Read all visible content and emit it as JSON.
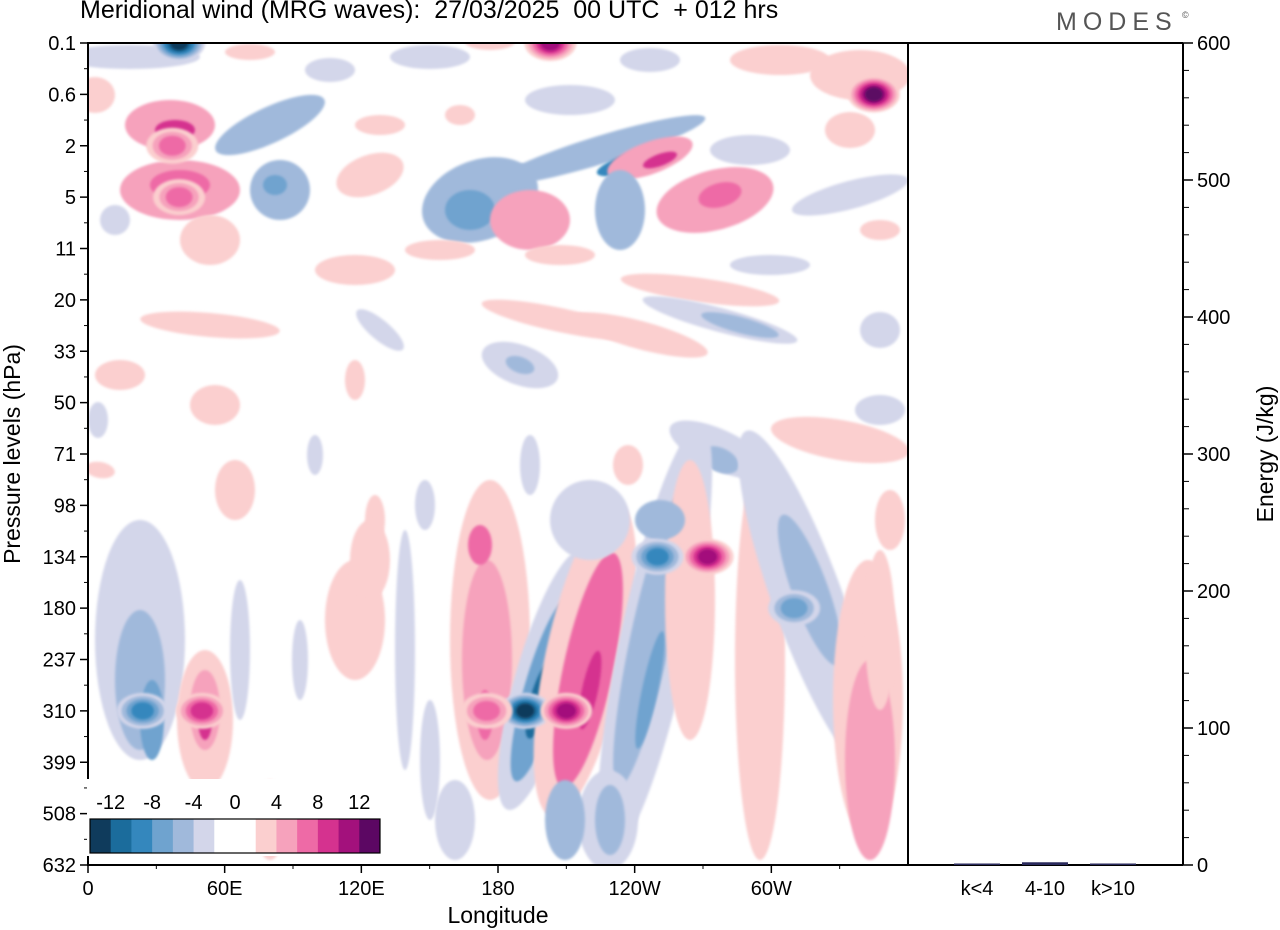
{
  "title": "Meridional wind (MRG waves):  27/03/2025  00 UTC  + 012 hrs",
  "logo": "MODES",
  "logo_mark": "©",
  "chart_data": [
    {
      "type": "heatmap",
      "title": "Meridional wind (MRG waves):  27/03/2025  00 UTC  + 012 hrs",
      "xlabel": "Longitude",
      "ylabel": "Pressure levels (hPa)",
      "x_ticks": [
        "0",
        "60E",
        "120E",
        "180",
        "120W",
        "60W"
      ],
      "x_tick_degrees": [
        0,
        60,
        120,
        180,
        240,
        300
      ],
      "xlim": [
        0,
        360
      ],
      "y_ticks": [
        "0.1",
        "0.6",
        "2",
        "5",
        "11",
        "20",
        "33",
        "50",
        "71",
        "98",
        "134",
        "180",
        "237",
        "310",
        "399",
        "508",
        "632"
      ],
      "colorbar": {
        "labels": [
          "-12",
          "-8",
          "-4",
          "0",
          "4",
          "8",
          "12"
        ],
        "colors": [
          "#0f3b5c",
          "#1b6c9c",
          "#3487bd",
          "#6fa3cf",
          "#a0b9db",
          "#d3d6ea",
          "#ffffff",
          "#ffffff",
          "#fbcfcf",
          "#f6a2bc",
          "#ee6aa6",
          "#d5328f",
          "#a3117c",
          "#5c0763"
        ]
      },
      "features": [
        {
          "lon": 40,
          "level": "0.1",
          "value": -11
        },
        {
          "lon": 203,
          "level": "0.1",
          "value": 10
        },
        {
          "lon": 345,
          "level": "0.6",
          "value": 11
        },
        {
          "lon": 40,
          "level": "5",
          "value": 6
        },
        {
          "lon": 37,
          "level": "2",
          "value": 6
        },
        {
          "lon": 192,
          "level": "310",
          "value": -12
        },
        {
          "lon": 210,
          "level": "310",
          "value": 9
        },
        {
          "lon": 272,
          "level": "134",
          "value": 10
        },
        {
          "lon": 24,
          "level": "310",
          "value": -7
        },
        {
          "lon": 50,
          "level": "310",
          "value": 7
        },
        {
          "lon": 310,
          "level": "180",
          "value": -6
        },
        {
          "lon": 250,
          "level": "134",
          "value": -7
        },
        {
          "lon": 175,
          "level": "310",
          "value": 6
        }
      ]
    },
    {
      "type": "bar",
      "ylabel": "Energy (J/kg)",
      "categories": [
        "k<4",
        "4-10",
        "k>10"
      ],
      "values": [
        0.3,
        2,
        0.3
      ],
      "y_ticks": [
        "0",
        "100",
        "200",
        "300",
        "400",
        "500",
        "600"
      ],
      "ylim": [
        0,
        600
      ]
    }
  ]
}
